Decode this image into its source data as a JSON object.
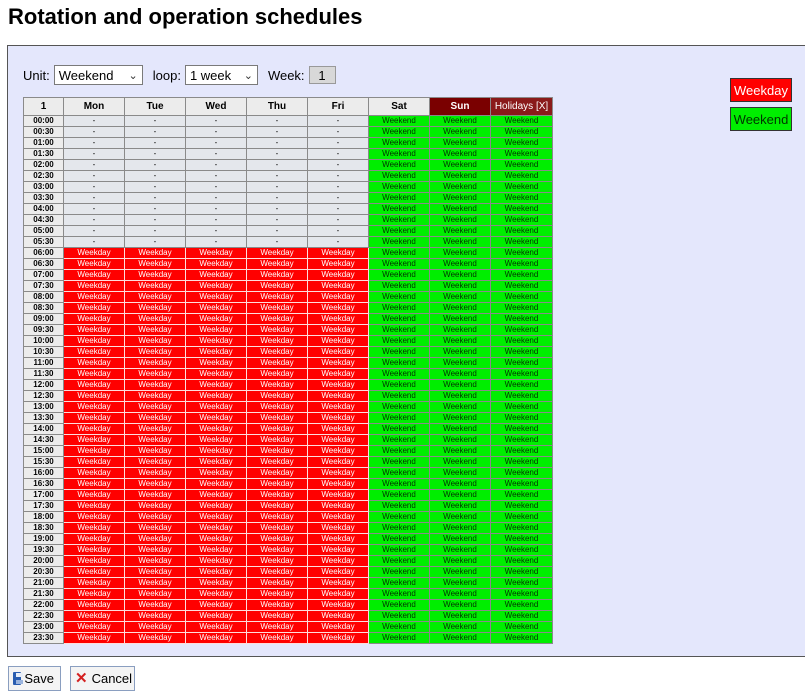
{
  "title": "Rotation and operation schedules",
  "controls": {
    "unit_label": "Unit:",
    "unit_value": "Weekend",
    "loop_label": "loop:",
    "loop_value": "1 week",
    "week_label": "Week:",
    "week_value": "1"
  },
  "table": {
    "corner_label": "1",
    "days": [
      "Mon",
      "Tue",
      "Wed",
      "Thu",
      "Fri",
      "Sat",
      "Sun",
      "Holidays [X]"
    ],
    "times": [
      "00:00",
      "00:30",
      "01:00",
      "01:30",
      "02:00",
      "02:30",
      "03:00",
      "03:30",
      "04:00",
      "04:30",
      "05:00",
      "05:30",
      "06:00",
      "06:30",
      "07:00",
      "07:30",
      "08:00",
      "08:30",
      "09:00",
      "09:30",
      "10:00",
      "10:30",
      "11:00",
      "11:30",
      "12:00",
      "12:30",
      "13:00",
      "13:30",
      "14:00",
      "14:30",
      "15:00",
      "15:30",
      "16:00",
      "16:30",
      "17:00",
      "17:30",
      "18:00",
      "18:30",
      "19:00",
      "19:30",
      "20:00",
      "20:30",
      "21:00",
      "21:30",
      "22:00",
      "22:30",
      "23:00",
      "23:30"
    ],
    "empty_text": "-",
    "weekday_text": "Weekday",
    "weekend_text": "Weekend",
    "weekday_rows_from": "06:00",
    "weekday_columns": [
      "Mon",
      "Tue",
      "Wed",
      "Thu",
      "Fri"
    ],
    "weekend_columns": [
      "Sat",
      "Sun",
      "Holidays [X]"
    ]
  },
  "legend": {
    "weekday": "Weekday",
    "weekend": "Weekend"
  },
  "colors": {
    "weekday": "#ff0000",
    "weekend": "#00ee00",
    "sunday_header": "#7a0000"
  },
  "buttons": {
    "save": "Save",
    "cancel": "Cancel"
  }
}
